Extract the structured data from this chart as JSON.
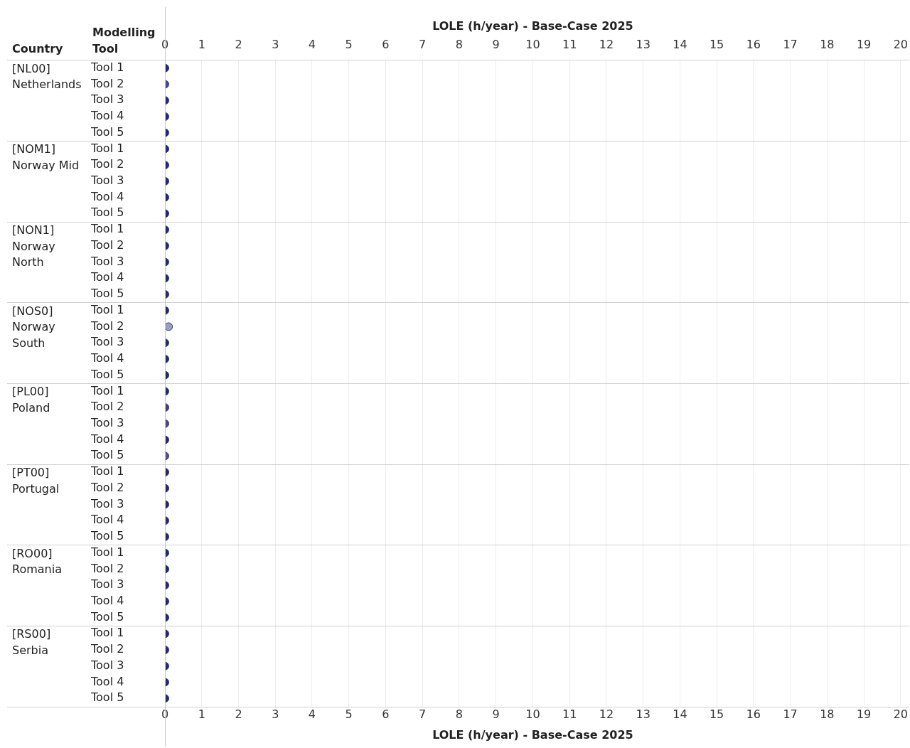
{
  "chart_data": {
    "type": "scatter",
    "orientation": "horizontal",
    "xlabel": "LOLE (h/year) - Base-Case 2025",
    "x2label": "LOLE (h/year) - Base-Case 2025",
    "ylabel": "Modelling Tool",
    "categories": [
      "Tool 1",
      "Tool 2",
      "Tool 3",
      "Tool 4",
      "Tool 5",
      "Tool 1",
      "Tool 2",
      "Tool 3",
      "Tool 4",
      "Tool 5",
      "Tool 1",
      "Tool 2",
      "Tool 3",
      "Tool 4",
      "Tool 5",
      "Tool 1",
      "Tool 2",
      "Tool 3",
      "Tool 4",
      "Tool 5",
      "Tool 1",
      "Tool 2",
      "Tool 3",
      "Tool 4",
      "Tool 5",
      "Tool 1",
      "Tool 2",
      "Tool 3",
      "Tool 4",
      "Tool 5",
      "Tool 1",
      "Tool 2",
      "Tool 3",
      "Tool 4",
      "Tool 5",
      "Tool 1",
      "Tool 2",
      "Tool 3",
      "Tool 4",
      "Tool 5"
    ],
    "values": [
      0,
      0,
      0,
      0,
      0,
      0,
      0,
      0,
      0,
      0,
      0,
      0,
      0,
      0,
      0,
      0,
      0.1,
      0,
      0,
      0,
      0,
      0,
      0,
      0,
      0,
      0,
      0,
      0,
      0,
      0,
      0,
      0,
      0,
      0,
      0,
      0,
      0,
      0,
      0,
      0
    ],
    "colors": [
      "#1f2a7c",
      "#45489a",
      "#1f2a7c",
      "#1f2a7c",
      "#1f2a7c",
      "#1f2a7c",
      "#1f2a7c",
      "#1f2a7c",
      "#1f2a7c",
      "#1f2a7c",
      "#1f2a7c",
      "#1f2a7c",
      "#1f2a7c",
      "#1f2a7c",
      "#1f2a7c",
      "#1f2a7c",
      "#9c9cc4",
      "#1f2a7c",
      "#1f2a7c",
      "#1f2a7c",
      "#1f2a7c",
      "#3a3f92",
      "#45489a",
      "#1f2a7c",
      "#4d509e",
      "#1f2a7c",
      "#1f2a7c",
      "#1f2a7c",
      "#1f2a7c",
      "#1f2a7c",
      "#1f2a7c",
      "#1f2a7c",
      "#1f2a7c",
      "#1f2a7c",
      "#1f2a7c",
      "#1f2a7c",
      "#1f2a7c",
      "#1f2a7c",
      "#1f2a7c",
      "#1f2a7c"
    ],
    "xlim": [
      0,
      20
    ],
    "xticks": [
      0,
      1,
      2,
      3,
      4,
      5,
      6,
      7,
      8,
      9,
      10,
      11,
      12,
      13,
      14,
      15,
      16,
      17,
      18,
      19,
      20
    ],
    "x2lim": [
      0,
      20
    ],
    "x2ticks": [
      0,
      1,
      2,
      3,
      4,
      5,
      6,
      7,
      8,
      9,
      10,
      11,
      12,
      13,
      14,
      15,
      16,
      17,
      18,
      19,
      20
    ],
    "annotations": [
      "Country",
      "[NL00] Netherlands",
      "[NOM1] Norway Mid",
      "[NON1] Norway North",
      "[NOS0] Norway South",
      "[PL00] Poland",
      "[PT00] Portugal",
      "[RO00] Romania",
      "[RS00] Serbia"
    ],
    "grid": "x",
    "marker": "circle",
    "legend": false
  }
}
